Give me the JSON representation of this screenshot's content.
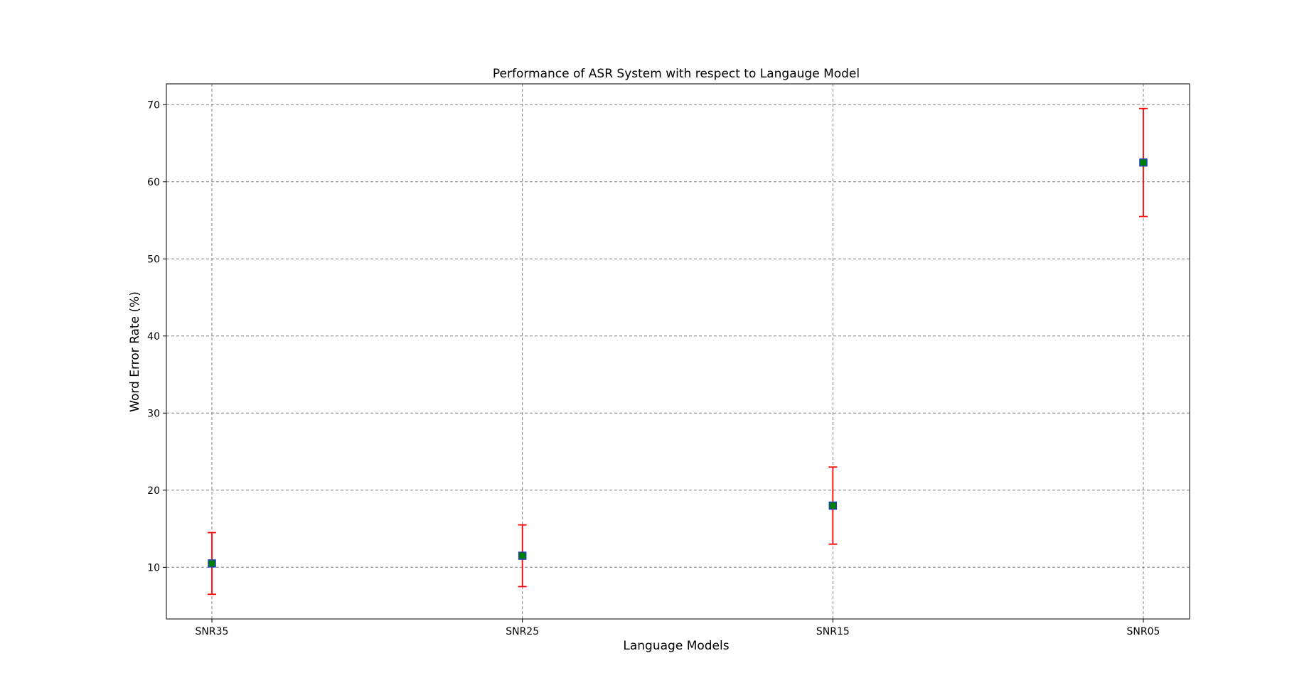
{
  "chart_data": {
    "type": "scatter",
    "title": "Performance of ASR System with respect to Langauge Model",
    "xlabel": "Language Models",
    "ylabel": "Word Error Rate (%)",
    "categories": [
      "SNR35",
      "SNR25",
      "SNR15",
      "SNR05"
    ],
    "series": [
      {
        "values": [
          10.5,
          11.5,
          18.0,
          62.5
        ],
        "error_low": [
          6.5,
          7.5,
          13.0,
          55.5
        ],
        "error_high": [
          14.5,
          15.5,
          23.0,
          69.5
        ]
      }
    ],
    "yticks": [
      10,
      20,
      30,
      40,
      50,
      60,
      70
    ],
    "ylim": [
      3.3,
      72.7
    ],
    "grid": true,
    "colors": {
      "marker_fill": "#008000",
      "marker_edge": "#1f3fbf",
      "errorbar": "#ff0000",
      "grid": "#808080"
    }
  }
}
